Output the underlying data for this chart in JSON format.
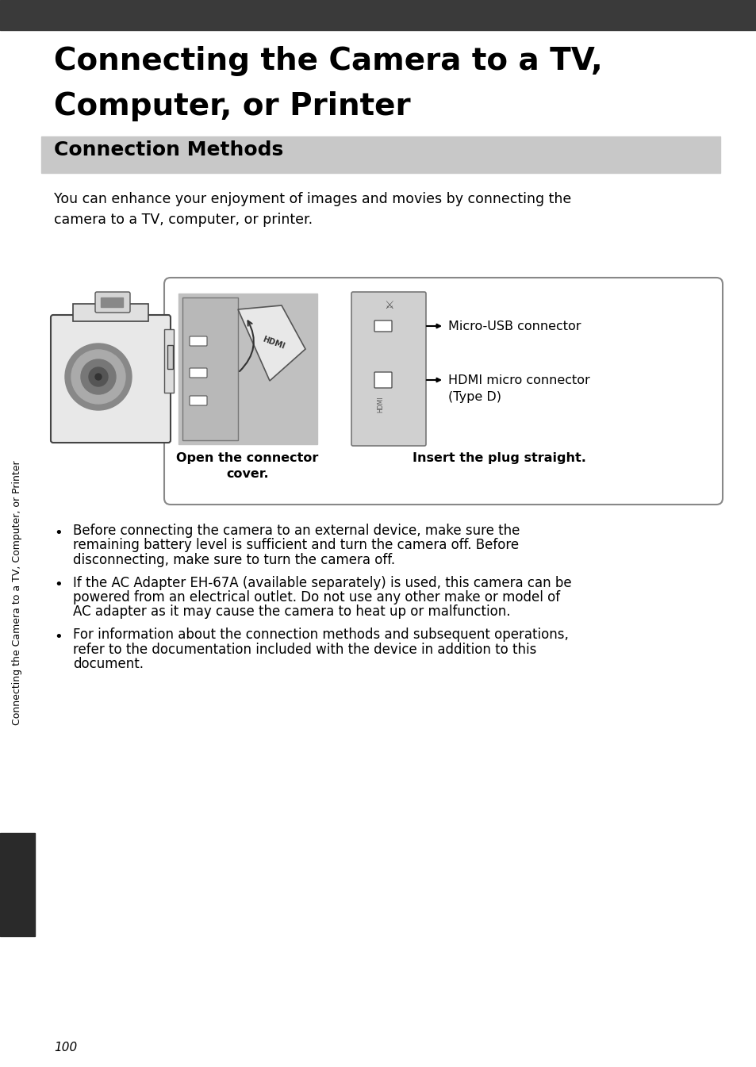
{
  "page_bg": "#ffffff",
  "header_bar_color": "#3a3a3a",
  "section_bg": "#c8c8c8",
  "title_line1": "Connecting the Camera to a TV,",
  "title_line2": "Computer, or Printer",
  "section_title": "Connection Methods",
  "intro_text": "You can enhance your enjoyment of images and movies by connecting the\ncamera to a TV, computer, or printer.",
  "bullet1_line1": "Before connecting the camera to an external device, make sure the",
  "bullet1_line2": "remaining battery level is sufficient and turn the camera off. Before",
  "bullet1_line3": "disconnecting, make sure to turn the camera off.",
  "bullet2_line1": "If the AC Adapter EH-67A (available separately) is used, this camera can be",
  "bullet2_line2": "powered from an electrical outlet. Do not use any other make or model of",
  "bullet2_line3": "AC adapter as it may cause the camera to heat up or malfunction.",
  "bullet3_line1": "For information about the connection methods and subsequent operations,",
  "bullet3_line2": "refer to the documentation included with the device in addition to this",
  "bullet3_line3": "document.",
  "sidebar_text": "Connecting the Camera to a TV, Computer, or Printer",
  "page_number": "100",
  "caption1_line1": "Open the connector",
  "caption1_line2": "cover.",
  "caption2": "Insert the plug straight.",
  "label_usb": "Micro-USB connector",
  "label_hdmi_line1": "HDMI micro connector",
  "label_hdmi_line2": "(Type D)",
  "sidebar_dark_color": "#2a2a2a",
  "diag_border_color": "#888888",
  "diag_fill_color": "#ffffff",
  "img_bg_color": "#c0c0c0",
  "port_bg_color": "#d0d0d0"
}
